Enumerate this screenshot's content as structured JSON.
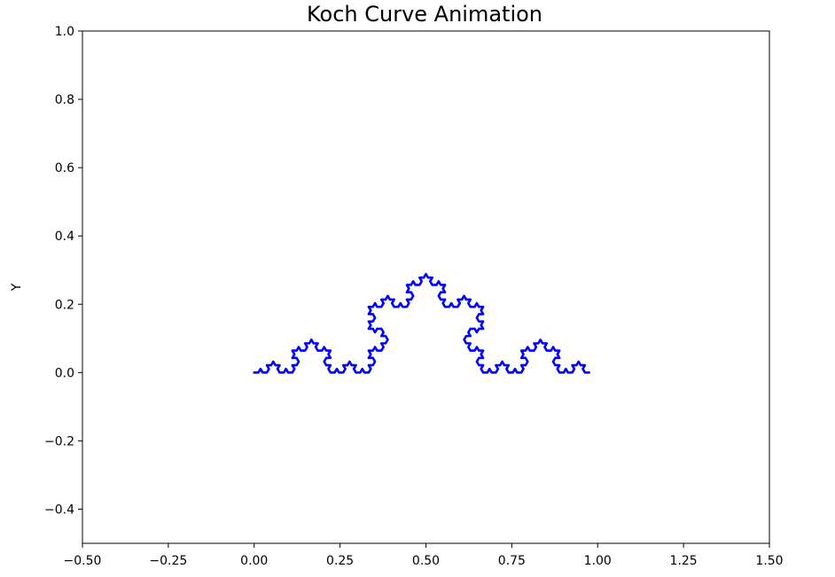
{
  "chart_data": {
    "type": "line",
    "title": "Koch Curve Animation",
    "xlabel": "",
    "ylabel": "Y",
    "xlim": [
      -0.5,
      1.5
    ],
    "ylim": [
      -0.5,
      1.0
    ],
    "x_ticks": [
      -0.5,
      -0.25,
      0.0,
      0.25,
      0.5,
      0.75,
      1.0,
      1.25,
      1.5
    ],
    "x_tick_labels": [
      "−0.50",
      "−0.25",
      "0.00",
      "0.25",
      "0.50",
      "0.75",
      "1.00",
      "1.25",
      "1.50"
    ],
    "y_ticks": [
      -0.4,
      -0.2,
      0.0,
      0.2,
      0.4,
      0.6,
      0.8,
      1.0
    ],
    "y_tick_labels": [
      "−0.4",
      "−0.2",
      "0.0",
      "0.2",
      "0.4",
      "0.6",
      "0.8",
      "1.0"
    ],
    "grid": false,
    "series": [
      {
        "color": "#0000ff",
        "koch_start": [
          0.0,
          0.0
        ],
        "koch_end": [
          1.0,
          0.0
        ],
        "koch_iterations": 4,
        "visible_fraction": 0.99
      }
    ]
  }
}
